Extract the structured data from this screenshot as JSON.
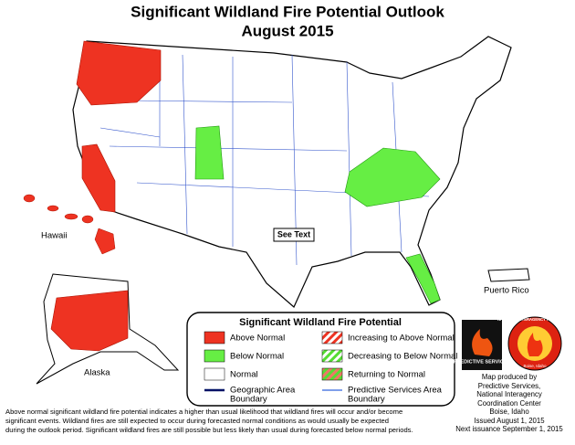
{
  "header": {
    "title": "Significant Wildland Fire Potential Outlook",
    "subtitle": "August 2015"
  },
  "map_labels": {
    "hawaii": "Hawaii",
    "alaska": "Alaska",
    "puerto_rico": "Puerto Rico",
    "see_text": "See Text"
  },
  "legend": {
    "title": "Significant Wildland Fire Potential",
    "items": [
      {
        "label": [
          "Above Normal"
        ]
      },
      {
        "label": [
          "Below Normal"
        ]
      },
      {
        "label": [
          "Normal"
        ]
      },
      {
        "label": [
          "Geographic Area",
          "Boundary"
        ]
      },
      {
        "label": [
          "Increasing to Above Normal"
        ]
      },
      {
        "label": [
          "Decreasing to Below Normal"
        ]
      },
      {
        "label": [
          "Returning to Normal"
        ]
      },
      {
        "label": [
          "Predictive Services Area",
          "Boundary"
        ]
      }
    ]
  },
  "logos": {
    "predictive": "PREDICTIVE SERVICES",
    "nifc": "NATIONAL INTERAGENCY FIRE CENTER",
    "nifc_city": "Boise, Idaho"
  },
  "credits": [
    "Map produced by",
    "Predictive Services,",
    "National Interagency",
    "Coordination Center",
    "Boise, Idaho",
    "Issued August 1, 2015",
    "Next issuance September 1, 2015"
  ],
  "footnote": [
    "Above normal significant wildland fire potential indicates a higher than usual likelihood that wildland fires will occur and/or become",
    "significant events.  Wildland fires are still expected to occur during forecasted normal conditions as would usually be expected",
    "during the outlook period.  Significant wildland fires are still possible but less likely than usual during forecasted below normal periods."
  ]
}
